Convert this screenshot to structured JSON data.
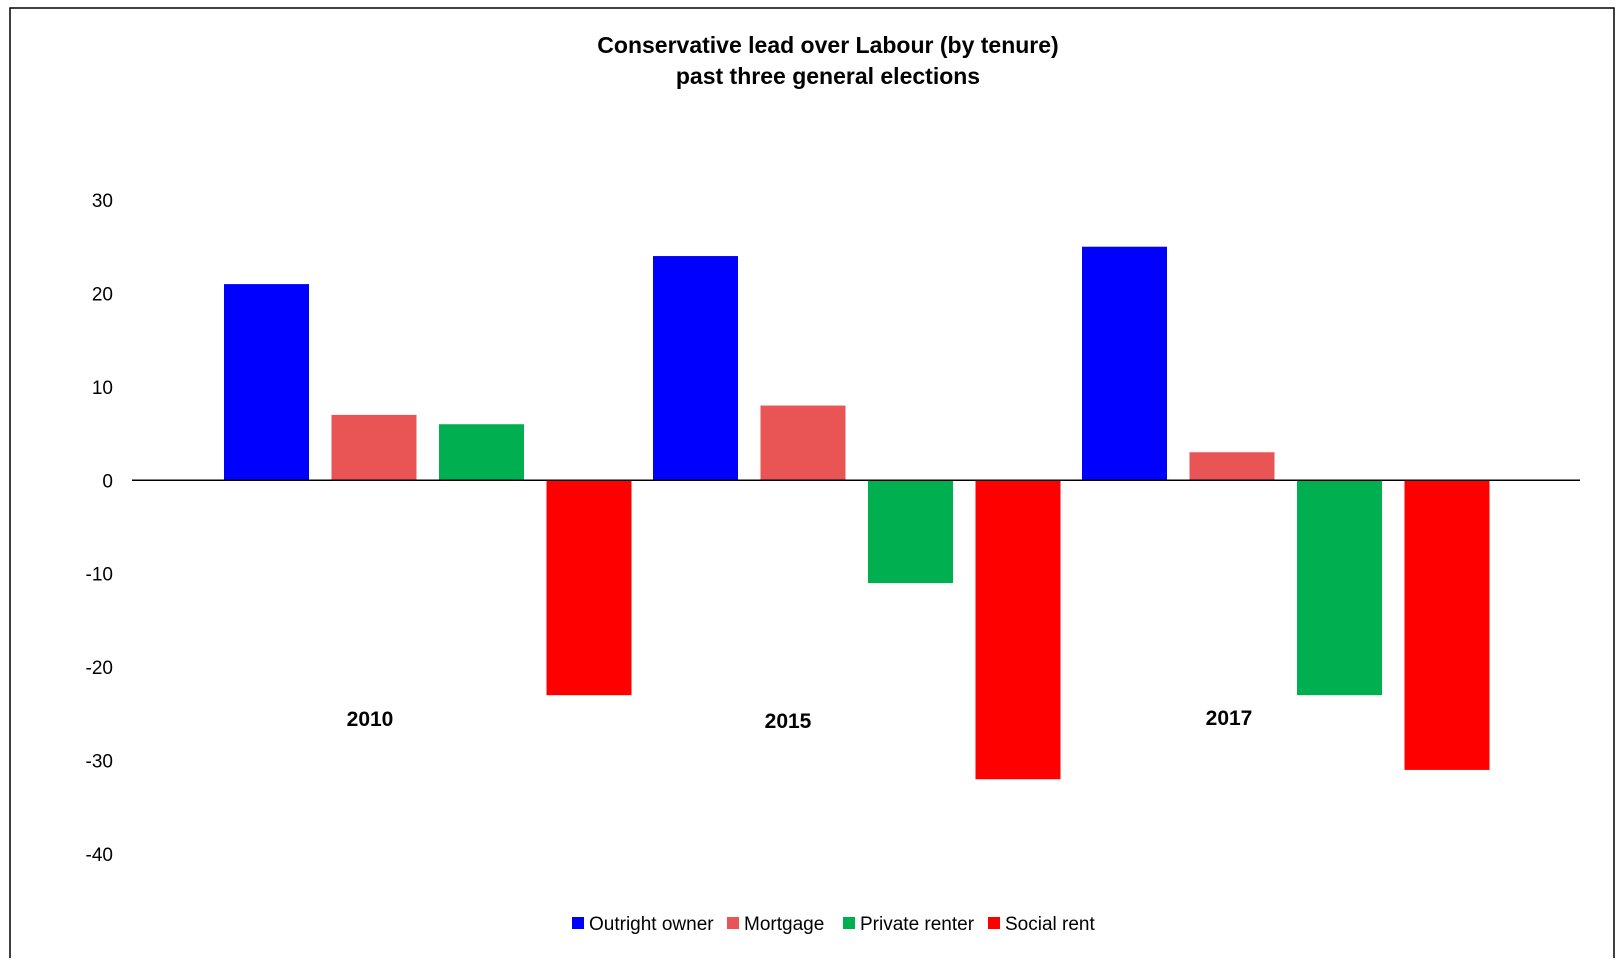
{
  "chart_data": {
    "type": "bar",
    "title": "Conservative lead over Labour (by tenure)",
    "subtitle": "past three general elections",
    "xlabel": "",
    "ylabel": "",
    "categories": [
      "2010",
      "2015",
      "2017"
    ],
    "series": [
      {
        "name": "Outright owner",
        "color": "#0000FF",
        "values": [
          21,
          24,
          25
        ]
      },
      {
        "name": "Mortgage",
        "color": "#E95555",
        "values": [
          7,
          8,
          3
        ]
      },
      {
        "name": "Private renter",
        "color": "#00B050",
        "values": [
          6,
          -11,
          -23
        ]
      },
      {
        "name": "Social rent",
        "color": "#FF0000",
        "values": [
          -23,
          -32,
          -31
        ]
      }
    ],
    "ylim": [
      -40,
      30
    ],
    "yticks": [
      30,
      20,
      10,
      0,
      -10,
      -20,
      -30,
      -40
    ],
    "grid": false,
    "legend_position": "bottom-center",
    "category_label_position": "below-axis-in-plot"
  }
}
